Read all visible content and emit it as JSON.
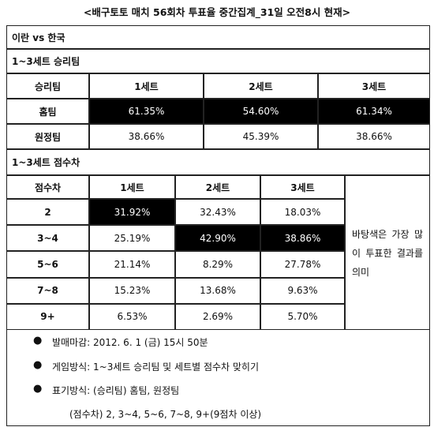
{
  "title": "<배구토토 매치 56회차 투표율 중간집계_31일 오전8시 현재>",
  "match": "이란 vs 한국",
  "section1": {
    "title": "1~3세트 승리팀",
    "header": [
      "승리팀",
      "1세트",
      "2세트",
      "3세트"
    ],
    "rows": [
      [
        "홈팀",
        "61.35%",
        "54.60%",
        "61.34%"
      ],
      [
        "원정팀",
        "38.66%",
        "45.39%",
        "38.66%"
      ]
    ]
  },
  "section2": {
    "title": "1~3세트 점수차",
    "header": [
      "점수차",
      "1세트",
      "2세트",
      "3세트"
    ],
    "rows": [
      [
        "2",
        "31.92%",
        "32.43%",
        "18.03%"
      ],
      [
        "3~4",
        "25.19%",
        "42.90%",
        "38.86%"
      ],
      [
        "5~6",
        "21.14%",
        "8.29%",
        "27.78%"
      ],
      [
        "7~8",
        "15.23%",
        "13.68%",
        "9.63%"
      ],
      [
        "9+",
        "6.53%",
        "2.69%",
        "5.70%"
      ]
    ],
    "note": "바탕색은 가장 많이 투표한 결과를 의미"
  },
  "notes": [
    "발매마감: 2012. 6. 1 (금) 15시 50분",
    "게임방식: 1~3세트 승리팀 및 세트별 점수차 맞히기",
    "표기방식: (승리팀) 홈팀, 원정팀",
    "(점수차) 2, 3~4, 5~6, 7~8, 9+(9점차 이상)"
  ]
}
